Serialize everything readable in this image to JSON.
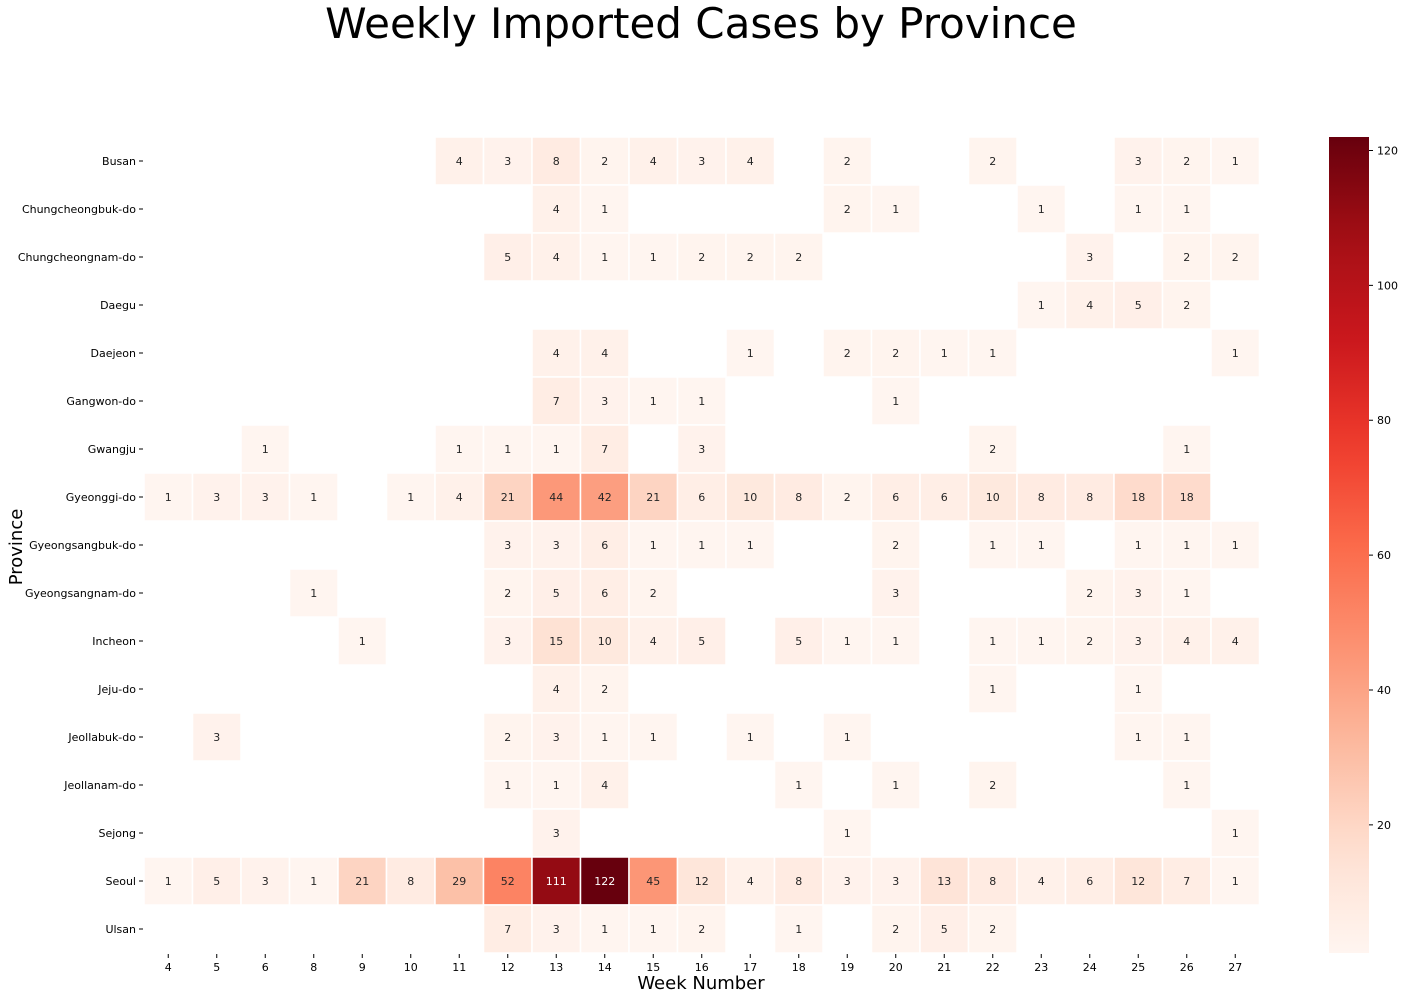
{
  "chart_data": {
    "type": "heatmap",
    "title": "Weekly Imported Cases by Province",
    "xlabel": "Week Number",
    "ylabel": "Province",
    "colormap": "Reds",
    "colorbar": {
      "min": 1,
      "max": 122,
      "ticks": [
        20,
        40,
        60,
        80,
        100,
        120
      ]
    },
    "x": [
      4,
      5,
      6,
      8,
      9,
      10,
      11,
      12,
      13,
      14,
      15,
      16,
      17,
      18,
      19,
      20,
      21,
      22,
      23,
      24,
      25,
      26,
      27
    ],
    "y": [
      "Busan",
      "Chungcheongbuk-do",
      "Chungcheongnam-do",
      "Daegu",
      "Daejeon",
      "Gangwon-do",
      "Gwangju",
      "Gyeonggi-do",
      "Gyeongsangbuk-do",
      "Gyeongsangnam-do",
      "Incheon",
      "Jeju-do",
      "Jeollabuk-do",
      "Jeollanam-do",
      "Sejong",
      "Seoul",
      "Ulsan"
    ],
    "values": [
      [
        null,
        null,
        null,
        null,
        null,
        null,
        4,
        3,
        8,
        2,
        4,
        3,
        4,
        null,
        2,
        null,
        null,
        2,
        null,
        null,
        3,
        2,
        1
      ],
      [
        null,
        null,
        null,
        null,
        null,
        null,
        null,
        null,
        4,
        1,
        null,
        null,
        null,
        null,
        2,
        1,
        null,
        null,
        1,
        null,
        1,
        1,
        null
      ],
      [
        null,
        null,
        null,
        null,
        null,
        null,
        null,
        5,
        4,
        1,
        1,
        2,
        2,
        2,
        null,
        null,
        null,
        null,
        null,
        3,
        null,
        2,
        2
      ],
      [
        null,
        null,
        null,
        null,
        null,
        null,
        null,
        null,
        null,
        null,
        null,
        null,
        null,
        null,
        null,
        null,
        null,
        null,
        1,
        4,
        5,
        2,
        null
      ],
      [
        null,
        null,
        null,
        null,
        null,
        null,
        null,
        null,
        4,
        4,
        null,
        null,
        1,
        null,
        2,
        2,
        1,
        1,
        null,
        null,
        null,
        null,
        1
      ],
      [
        null,
        null,
        null,
        null,
        null,
        null,
        null,
        null,
        7,
        3,
        1,
        1,
        null,
        null,
        null,
        1,
        null,
        null,
        null,
        null,
        null,
        null,
        null
      ],
      [
        null,
        null,
        1,
        null,
        null,
        null,
        1,
        1,
        1,
        7,
        null,
        3,
        null,
        null,
        null,
        null,
        null,
        2,
        null,
        null,
        null,
        1,
        null
      ],
      [
        1,
        3,
        3,
        1,
        null,
        1,
        4,
        21,
        44,
        42,
        21,
        6,
        10,
        8,
        2,
        6,
        6,
        10,
        8,
        8,
        18,
        18,
        null
      ],
      [
        null,
        null,
        null,
        null,
        null,
        null,
        null,
        3,
        3,
        6,
        1,
        1,
        1,
        null,
        null,
        2,
        null,
        1,
        1,
        null,
        1,
        1,
        1
      ],
      [
        null,
        null,
        null,
        1,
        null,
        null,
        null,
        2,
        5,
        6,
        2,
        null,
        null,
        null,
        null,
        3,
        null,
        null,
        null,
        2,
        3,
        1,
        null
      ],
      [
        null,
        null,
        null,
        null,
        1,
        null,
        null,
        3,
        15,
        10,
        4,
        5,
        null,
        5,
        1,
        1,
        null,
        1,
        1,
        2,
        3,
        4,
        4
      ],
      [
        null,
        null,
        null,
        null,
        null,
        null,
        null,
        null,
        4,
        2,
        null,
        null,
        null,
        null,
        null,
        null,
        null,
        1,
        null,
        null,
        1,
        null,
        null
      ],
      [
        null,
        3,
        null,
        null,
        null,
        null,
        null,
        2,
        3,
        1,
        1,
        null,
        1,
        null,
        1,
        null,
        null,
        null,
        null,
        null,
        1,
        1,
        null
      ],
      [
        null,
        null,
        null,
        null,
        null,
        null,
        null,
        1,
        1,
        4,
        null,
        null,
        null,
        1,
        null,
        1,
        null,
        2,
        null,
        null,
        null,
        1,
        null
      ],
      [
        null,
        null,
        null,
        null,
        null,
        null,
        null,
        null,
        3,
        null,
        null,
        null,
        null,
        null,
        1,
        null,
        null,
        null,
        null,
        null,
        null,
        null,
        1
      ],
      [
        1,
        5,
        3,
        1,
        21,
        8,
        29,
        52,
        111,
        122,
        45,
        12,
        4,
        8,
        3,
        3,
        13,
        8,
        4,
        6,
        12,
        7,
        1
      ],
      [
        null,
        null,
        null,
        null,
        null,
        null,
        null,
        7,
        3,
        1,
        1,
        2,
        null,
        1,
        null,
        2,
        5,
        2,
        null,
        null,
        null,
        null,
        null
      ]
    ]
  }
}
